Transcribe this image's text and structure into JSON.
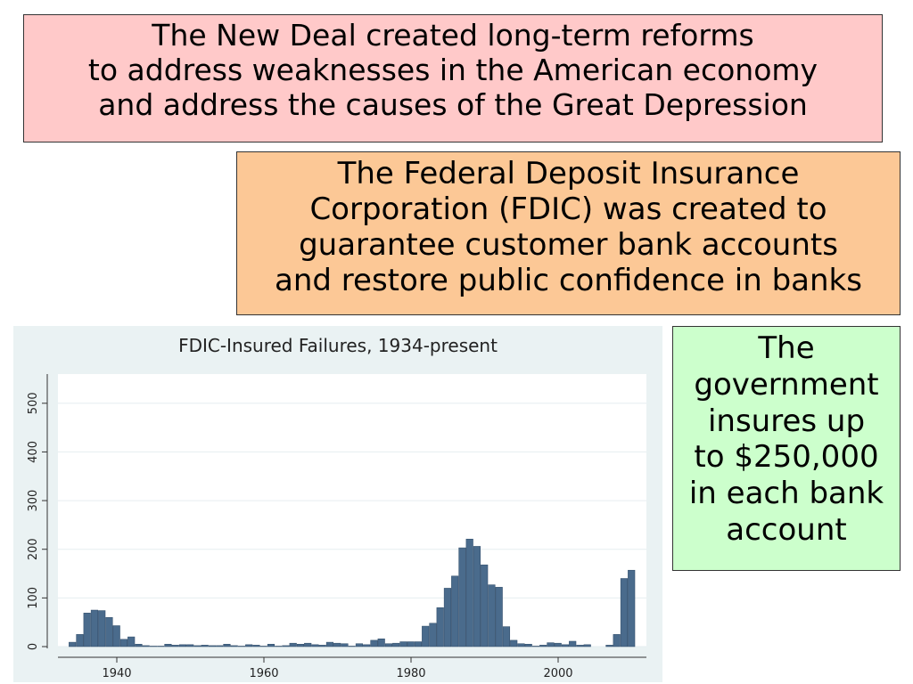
{
  "slide": {
    "header": {
      "lines": [
        "The New Deal created long-term reforms",
        "to address weaknesses in the American economy",
        "and address the causes of the Great Depression"
      ]
    },
    "fdic_box": {
      "lines": [
        "The Federal Deposit Insurance",
        "Corporation (FDIC) was created to",
        "guarantee customer bank accounts",
        "and restore public confidence in banks"
      ]
    },
    "insurance_box": {
      "lines": [
        "The",
        "government",
        "insures up",
        "to $250,000",
        "in each bank",
        "account"
      ]
    }
  },
  "colors": {
    "header_bg": "#ffc9c9",
    "fdic_bg": "#fcc896",
    "insurance_bg": "#ccffcc",
    "bar_fill": "#4a6b8c",
    "plot_bg": "#eaf2f3"
  },
  "chart_data": {
    "type": "bar",
    "title": "FDIC-Insured Failures, 1934-present",
    "xlabel": "",
    "ylabel": "",
    "xlim": [
      1932,
      2012
    ],
    "ylim": [
      0,
      560
    ],
    "x_ticks": [
      1940,
      1960,
      1980,
      2000
    ],
    "y_ticks": [
      0,
      100,
      200,
      300,
      400,
      500
    ],
    "grid": "horizontal",
    "x": [
      1934,
      1935,
      1936,
      1937,
      1938,
      1939,
      1940,
      1941,
      1942,
      1943,
      1944,
      1945,
      1946,
      1947,
      1948,
      1949,
      1950,
      1951,
      1952,
      1953,
      1954,
      1955,
      1956,
      1957,
      1958,
      1959,
      1960,
      1961,
      1962,
      1963,
      1964,
      1965,
      1966,
      1967,
      1968,
      1969,
      1970,
      1971,
      1972,
      1973,
      1974,
      1975,
      1976,
      1977,
      1978,
      1979,
      1980,
      1981,
      1982,
      1983,
      1984,
      1985,
      1986,
      1987,
      1988,
      1989,
      1990,
      1991,
      1992,
      1993,
      1994,
      1995,
      1996,
      1997,
      1998,
      1999,
      2000,
      2001,
      2002,
      2003,
      2004,
      2005,
      2006,
      2007,
      2008,
      2009,
      2010
    ],
    "values": [
      9,
      25,
      69,
      75,
      74,
      60,
      43,
      15,
      20,
      5,
      2,
      1,
      1,
      5,
      3,
      4,
      4,
      2,
      3,
      2,
      2,
      5,
      2,
      1,
      4,
      3,
      1,
      5,
      1,
      2,
      7,
      5,
      7,
      4,
      3,
      9,
      7,
      6,
      1,
      6,
      4,
      13,
      16,
      6,
      7,
      10,
      10,
      10,
      42,
      48,
      80,
      120,
      145,
      203,
      221,
      206,
      168,
      127,
      122,
      41,
      13,
      6,
      5,
      1,
      3,
      8,
      7,
      4,
      11,
      3,
      4,
      0,
      0,
      3,
      25,
      140,
      157
    ]
  }
}
